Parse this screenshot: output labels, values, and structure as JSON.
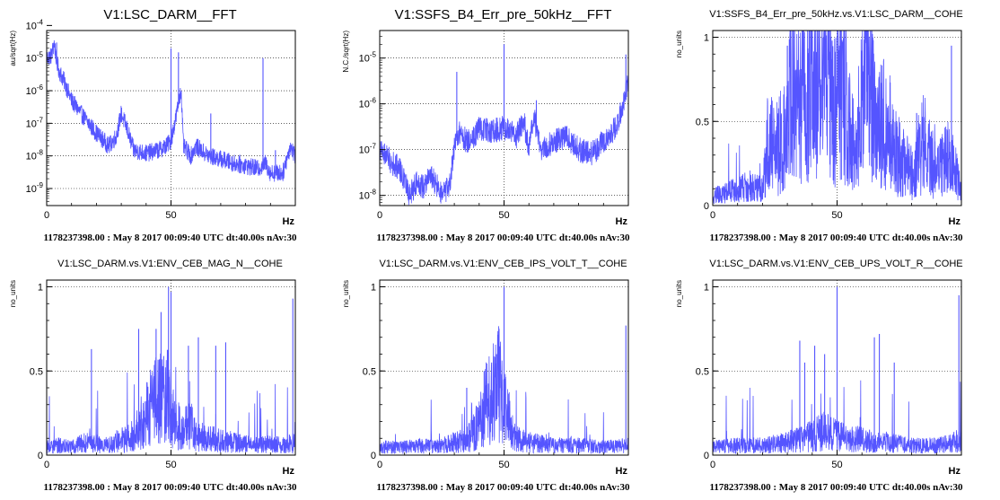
{
  "footer_note": "1178237398.00 : May  8 2017 00:09:40 UTC dt:40.00s nAv:30",
  "series_color": "#5555ff",
  "chart_data": [
    {
      "type": "line",
      "title": "V1:LSC_DARM__FFT",
      "ylabel": "au/sqrt(Hz)",
      "xlabel": "Hz",
      "xlim": [
        0,
        100
      ],
      "ylim": [
        3e-10,
        7e-05
      ],
      "yscale": "log",
      "grid": true,
      "xticks": [
        {
          "v": 0,
          "label": "0"
        },
        {
          "v": 50,
          "label": "50"
        }
      ],
      "yticks": [
        {
          "v": 1e-09,
          "base": "10",
          "exp": "-9"
        },
        {
          "v": 1e-08,
          "base": "10",
          "exp": "-8"
        },
        {
          "v": 1e-07,
          "base": "10",
          "exp": "-7"
        },
        {
          "v": 1e-06,
          "base": "10",
          "exp": "-6"
        },
        {
          "v": 1e-05,
          "base": "10",
          "exp": "-5"
        },
        {
          "v": 0.0001,
          "base": "10",
          "exp": "-4"
        }
      ],
      "x": [
        0,
        2,
        3,
        4,
        5,
        7,
        10,
        15,
        20,
        25,
        28,
        30,
        32,
        35,
        40,
        45,
        48,
        50,
        52,
        54,
        55,
        58,
        60,
        65,
        70,
        75,
        80,
        85,
        88,
        90,
        95,
        98,
        100
      ],
      "values": [
        1e-05,
        1.2e-05,
        3e-05,
        8e-06,
        4e-06,
        2e-06,
        5e-07,
        1.5e-07,
        5e-08,
        2e-08,
        4e-08,
        2e-07,
        8e-08,
        1.5e-08,
        1.2e-08,
        1.5e-08,
        2e-08,
        3e-08,
        1.5e-07,
        1.2e-06,
        2e-08,
        1e-08,
        2e-08,
        1e-08,
        8e-09,
        6e-09,
        5e-09,
        4e-09,
        6e-09,
        3e-09,
        3e-09,
        2e-08,
        1e-08
      ],
      "peaks": [
        {
          "x": 4,
          "y": 3e-05
        },
        {
          "x": 50,
          "y": 2e-05
        },
        {
          "x": 53,
          "y": 1.5e-05
        },
        {
          "x": 66,
          "y": 2e-07
        },
        {
          "x": 87,
          "y": 1e-05
        },
        {
          "x": 92,
          "y": 1.5e-08
        }
      ]
    },
    {
      "type": "line",
      "title": "V1:SSFS_B4_Err_pre_50kHz__FFT",
      "ylabel": "N.C./sqrt(Hz)",
      "xlabel": "Hz",
      "xlim": [
        0,
        100
      ],
      "ylim": [
        6e-09,
        4e-05
      ],
      "yscale": "log",
      "grid": true,
      "xticks": [
        {
          "v": 0,
          "label": "0"
        },
        {
          "v": 50,
          "label": "50"
        }
      ],
      "yticks": [
        {
          "v": 1e-08,
          "base": "10",
          "exp": "-8"
        },
        {
          "v": 1e-07,
          "base": "10",
          "exp": "-7"
        },
        {
          "v": 1e-06,
          "base": "10",
          "exp": "-6"
        },
        {
          "v": 1e-05,
          "base": "10",
          "exp": "-5"
        }
      ],
      "x": [
        0,
        2,
        5,
        8,
        10,
        12,
        15,
        18,
        20,
        22,
        25,
        28,
        30,
        32,
        35,
        38,
        40,
        45,
        50,
        55,
        58,
        60,
        62,
        65,
        70,
        75,
        80,
        85,
        90,
        95,
        98,
        100
      ],
      "values": [
        1e-07,
        8e-08,
        5e-08,
        4e-08,
        2e-08,
        1e-08,
        2e-08,
        1.5e-08,
        3e-08,
        2e-08,
        1e-08,
        1.5e-08,
        1e-07,
        2.5e-07,
        1.5e-07,
        2e-07,
        3e-07,
        2.5e-07,
        3e-07,
        2e-07,
        4e-07,
        1e-07,
        5e-07,
        1e-07,
        1.5e-07,
        2e-07,
        1e-07,
        8e-08,
        1.5e-07,
        3e-07,
        1e-06,
        3e-06
      ],
      "peaks": [
        {
          "x": 31,
          "y": 5e-06
        },
        {
          "x": 50,
          "y": 2e-05
        },
        {
          "x": 63,
          "y": 1.2e-06
        },
        {
          "x": 99,
          "y": 1.2e-05
        }
      ]
    },
    {
      "type": "line",
      "title": "V1:SSFS_B4_Err_pre_50kHz.vs.V1:LSC_DARM__COHE",
      "ylabel": "no_units",
      "xlabel": "Hz",
      "xlim": [
        0,
        100
      ],
      "ylim": [
        0,
        1.04
      ],
      "yscale": "linear",
      "grid": true,
      "xticks": [
        {
          "v": 0,
          "label": "0"
        },
        {
          "v": 50,
          "label": "50"
        }
      ],
      "yticks": [
        {
          "v": 0,
          "label": "0"
        },
        {
          "v": 0.5,
          "label": "0.5"
        },
        {
          "v": 1,
          "label": "1"
        }
      ],
      "x": [
        0,
        5,
        10,
        15,
        20,
        22,
        25,
        30,
        32,
        35,
        40,
        42,
        45,
        48,
        50,
        52,
        55,
        58,
        60,
        62,
        65,
        70,
        75,
        80,
        85,
        90,
        95,
        100
      ],
      "values": [
        0.06,
        0.08,
        0.1,
        0.12,
        0.1,
        0.4,
        0.35,
        0.45,
        0.8,
        0.6,
        0.9,
        0.7,
        0.8,
        0.6,
        0.7,
        0.9,
        0.5,
        0.3,
        0.9,
        0.95,
        0.5,
        0.5,
        0.3,
        0.2,
        0.4,
        0.2,
        0.3,
        0.15
      ],
      "peaks": [
        {
          "x": 30,
          "y": 0.95
        },
        {
          "x": 40,
          "y": 0.98
        },
        {
          "x": 48,
          "y": 0.98
        },
        {
          "x": 62,
          "y": 0.98
        },
        {
          "x": 82,
          "y": 0.55
        },
        {
          "x": 96,
          "y": 0.95
        }
      ]
    },
    {
      "type": "line",
      "title": "V1:LSC_DARM.vs.V1:ENV_CEB_MAG_N__COHE",
      "ylabel": "no_units",
      "xlabel": "Hz",
      "xlim": [
        0,
        100
      ],
      "ylim": [
        0,
        1.04
      ],
      "yscale": "linear",
      "grid": true,
      "xticks": [
        {
          "v": 0,
          "label": "0"
        },
        {
          "v": 50,
          "label": "50"
        }
      ],
      "yticks": [
        {
          "v": 0,
          "label": "0"
        },
        {
          "v": 0.5,
          "label": "0.5"
        },
        {
          "v": 1,
          "label": "1"
        }
      ],
      "x": [
        0,
        5,
        10,
        15,
        20,
        25,
        30,
        35,
        38,
        40,
        42,
        45,
        48,
        50,
        52,
        55,
        58,
        60,
        65,
        70,
        75,
        80,
        85,
        90,
        95,
        100
      ],
      "values": [
        0.05,
        0.06,
        0.05,
        0.08,
        0.07,
        0.06,
        0.1,
        0.12,
        0.2,
        0.25,
        0.3,
        0.35,
        0.4,
        0.3,
        0.2,
        0.15,
        0.2,
        0.12,
        0.1,
        0.1,
        0.08,
        0.07,
        0.06,
        0.07,
        0.06,
        0.08
      ],
      "peaks": [
        {
          "x": 18,
          "y": 0.63
        },
        {
          "x": 37,
          "y": 0.75
        },
        {
          "x": 44,
          "y": 0.75
        },
        {
          "x": 46,
          "y": 0.85
        },
        {
          "x": 49,
          "y": 1.0
        },
        {
          "x": 50,
          "y": 0.97
        },
        {
          "x": 57,
          "y": 0.65
        },
        {
          "x": 61,
          "y": 0.7
        },
        {
          "x": 68,
          "y": 0.65
        },
        {
          "x": 72,
          "y": 0.67
        },
        {
          "x": 99,
          "y": 0.93
        }
      ]
    },
    {
      "type": "line",
      "title": "V1:LSC_DARM.vs.V1:ENV_CEB_IPS_VOLT_T__COHE",
      "ylabel": "no_units",
      "xlabel": "Hz",
      "xlim": [
        0,
        100
      ],
      "ylim": [
        0,
        1.04
      ],
      "yscale": "linear",
      "grid": true,
      "xticks": [
        {
          "v": 0,
          "label": "0"
        },
        {
          "v": 50,
          "label": "50"
        }
      ],
      "yticks": [
        {
          "v": 0,
          "label": "0"
        },
        {
          "v": 0.5,
          "label": "0.5"
        },
        {
          "v": 1,
          "label": "1"
        }
      ],
      "x": [
        0,
        10,
        20,
        25,
        30,
        35,
        38,
        40,
        42,
        44,
        46,
        48,
        50,
        52,
        55,
        60,
        70,
        80,
        90,
        100
      ],
      "values": [
        0.05,
        0.05,
        0.06,
        0.06,
        0.08,
        0.1,
        0.15,
        0.2,
        0.3,
        0.35,
        0.4,
        0.45,
        0.35,
        0.2,
        0.1,
        0.08,
        0.06,
        0.06,
        0.05,
        0.06
      ],
      "peaks": [
        {
          "x": 35,
          "y": 0.4
        },
        {
          "x": 42,
          "y": 0.5
        },
        {
          "x": 45,
          "y": 0.55
        },
        {
          "x": 47,
          "y": 0.6
        },
        {
          "x": 48,
          "y": 0.75
        },
        {
          "x": 50,
          "y": 1.0
        },
        {
          "x": 99,
          "y": 0.77
        }
      ]
    },
    {
      "type": "line",
      "title": "V1:LSC_DARM.vs.V1:ENV_CEB_UPS_VOLT_R__COHE",
      "ylabel": "no_units",
      "xlabel": "Hz",
      "xlim": [
        0,
        100
      ],
      "ylim": [
        0,
        1.04
      ],
      "yscale": "linear",
      "grid": true,
      "xticks": [
        {
          "v": 0,
          "label": "0"
        },
        {
          "v": 50,
          "label": "50"
        }
      ],
      "yticks": [
        {
          "v": 0,
          "label": "0"
        },
        {
          "v": 0.5,
          "label": "0.5"
        },
        {
          "v": 1,
          "label": "1"
        }
      ],
      "x": [
        0,
        10,
        20,
        30,
        35,
        40,
        45,
        50,
        55,
        60,
        65,
        70,
        75,
        80,
        85,
        90,
        95,
        100
      ],
      "values": [
        0.05,
        0.06,
        0.06,
        0.08,
        0.1,
        0.12,
        0.15,
        0.12,
        0.1,
        0.1,
        0.08,
        0.08,
        0.07,
        0.06,
        0.06,
        0.06,
        0.07,
        0.1
      ],
      "peaks": [
        {
          "x": 35,
          "y": 0.68
        },
        {
          "x": 37,
          "y": 0.55
        },
        {
          "x": 41,
          "y": 0.65
        },
        {
          "x": 45,
          "y": 0.6
        },
        {
          "x": 50,
          "y": 1.0
        },
        {
          "x": 65,
          "y": 0.7
        },
        {
          "x": 67,
          "y": 0.72
        },
        {
          "x": 73,
          "y": 0.55
        },
        {
          "x": 99,
          "y": 0.95
        }
      ]
    }
  ]
}
